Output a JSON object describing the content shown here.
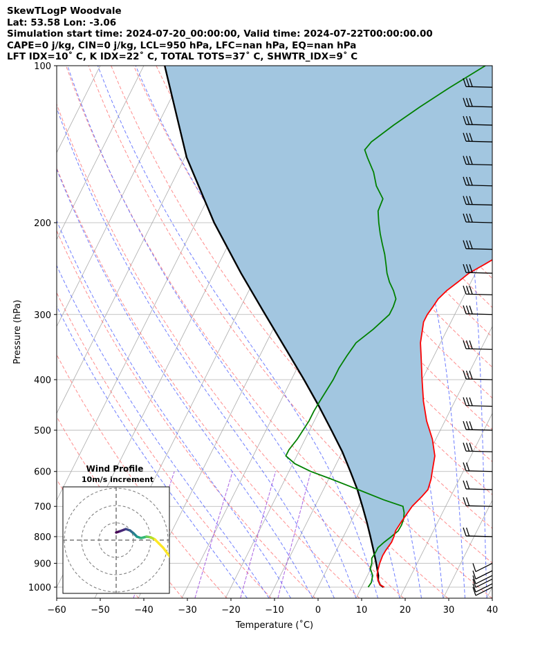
{
  "header": {
    "title": "SkewTLogP Woodvale",
    "latlon": "Lat: 53.58   Lon: -3.06",
    "simulation": "Simulation start time: 2024-07-20_00:00:00, Valid time: 2024-07-22T00:00:00.00",
    "indices1": "CAPE=0 j/kg, CIN=0 j/kg, LCL=950 hPa, LFC=nan hPa, EQ=nan hPa",
    "indices2": "LFT IDX=10˚ C, K IDX=22˚ C, TOTAL TOTS=37˚ C, SHWTR_IDX=9˚ C"
  },
  "chart_data": {
    "type": "line",
    "subtype": "skew-T log-P diagram",
    "xlabel": "Temperature (˚C)",
    "ylabel": "Pressure (hPa)",
    "xlim": [
      -60,
      40
    ],
    "ylim": [
      1050,
      100
    ],
    "x_ticks": [
      -60,
      -50,
      -40,
      -30,
      -20,
      -10,
      0,
      10,
      20,
      30,
      40
    ],
    "y_ticks": [
      100,
      200,
      300,
      400,
      500,
      600,
      700,
      800,
      900,
      1000
    ],
    "y_scale": "log",
    "skew_degrees_per_decade": 60,
    "grid": true,
    "colors": {
      "temperature": "#ff0000",
      "dewpoint": "#008000",
      "parcel": "#000000",
      "cape_fill": "#a2c6e0",
      "dry_adiabat": "#ff6666",
      "moist_adiabat": "#5566ff",
      "mixing_ratio": "#9944dd",
      "isotherm": "#aaaaaa",
      "wind_barb": "#000000"
    },
    "series": [
      {
        "name": "Temperature",
        "points": [
          [
            1000,
            15.2
          ],
          [
            990,
            14.0
          ],
          [
            970,
            13.0
          ],
          [
            950,
            12.2
          ],
          [
            930,
            11.8
          ],
          [
            900,
            11.4
          ],
          [
            870,
            11.2
          ],
          [
            850,
            11.3
          ],
          [
            820,
            11.7
          ],
          [
            800,
            11.6
          ],
          [
            780,
            11.3
          ],
          [
            750,
            11.6
          ],
          [
            700,
            12.3
          ],
          [
            670,
            13.4
          ],
          [
            650,
            14.0
          ],
          [
            620,
            13.5
          ],
          [
            600,
            12.9
          ],
          [
            560,
            11.7
          ],
          [
            520,
            9.2
          ],
          [
            480,
            5.8
          ],
          [
            440,
            2.8
          ],
          [
            400,
            0.0
          ],
          [
            370,
            -2.2
          ],
          [
            340,
            -4.6
          ],
          [
            310,
            -6.3
          ],
          [
            300,
            -6.3
          ],
          [
            290,
            -5.9
          ],
          [
            280,
            -5.6
          ],
          [
            270,
            -4.6
          ],
          [
            260,
            -3.0
          ],
          [
            250,
            -1.5
          ],
          [
            240,
            1.2
          ],
          [
            230,
            3.8
          ],
          [
            220,
            5.5
          ],
          [
            210,
            6.7
          ],
          [
            200,
            7.8
          ],
          [
            190,
            8.7
          ],
          [
            180,
            9.4
          ],
          [
            170,
            9.6
          ],
          [
            160,
            9.6
          ],
          [
            150,
            9.6
          ],
          [
            140,
            9.4
          ],
          [
            130,
            9.8
          ],
          [
            125,
            10.6
          ],
          [
            120,
            12.0
          ],
          [
            110,
            12.5
          ],
          [
            100,
            13.0
          ]
        ]
      },
      {
        "name": "Dewpoint",
        "points": [
          [
            1000,
            11.5
          ],
          [
            980,
            11.7
          ],
          [
            950,
            11.2
          ],
          [
            920,
            9.8
          ],
          [
            900,
            9.6
          ],
          [
            880,
            9.0
          ],
          [
            860,
            9.2
          ],
          [
            840,
            9.2
          ],
          [
            820,
            10.0
          ],
          [
            800,
            11.0
          ],
          [
            780,
            11.9
          ],
          [
            760,
            12.0
          ],
          [
            740,
            11.8
          ],
          [
            720,
            11.2
          ],
          [
            700,
            10.2
          ],
          [
            680,
            5.0
          ],
          [
            650,
            -2.0
          ],
          [
            620,
            -9.5
          ],
          [
            600,
            -15.0
          ],
          [
            580,
            -19.5
          ],
          [
            560,
            -22.5
          ],
          [
            545,
            -22.5
          ],
          [
            520,
            -21.8
          ],
          [
            480,
            -21.2
          ],
          [
            460,
            -21.2
          ],
          [
            440,
            -21.0
          ],
          [
            400,
            -20.4
          ],
          [
            380,
            -20.4
          ],
          [
            360,
            -20.0
          ],
          [
            340,
            -19.4
          ],
          [
            320,
            -17.0
          ],
          [
            300,
            -15.0
          ],
          [
            290,
            -15.0
          ],
          [
            280,
            -15.3
          ],
          [
            270,
            -16.8
          ],
          [
            260,
            -18.7
          ],
          [
            250,
            -20.3
          ],
          [
            240,
            -21.6
          ],
          [
            230,
            -23.0
          ],
          [
            220,
            -24.7
          ],
          [
            210,
            -26.4
          ],
          [
            200,
            -28.0
          ],
          [
            190,
            -29.5
          ],
          [
            180,
            -29.8
          ],
          [
            170,
            -32.8
          ],
          [
            160,
            -35.0
          ],
          [
            150,
            -38.1
          ],
          [
            145,
            -39.6
          ],
          [
            140,
            -39.0
          ],
          [
            130,
            -35.8
          ],
          [
            120,
            -31.9
          ],
          [
            110,
            -27.2
          ],
          [
            100,
            -21.6
          ]
        ]
      },
      {
        "name": "Parcel",
        "points": [
          [
            1000,
            15.0
          ],
          [
            990,
            14.0
          ],
          [
            970,
            13.0
          ],
          [
            950,
            12.5
          ],
          [
            900,
            10.6
          ],
          [
            850,
            8.5
          ],
          [
            800,
            6.2
          ],
          [
            750,
            3.7
          ],
          [
            700,
            0.9
          ],
          [
            650,
            -2.2
          ],
          [
            600,
            -5.9
          ],
          [
            550,
            -10.0
          ],
          [
            500,
            -15.0
          ],
          [
            450,
            -20.6
          ],
          [
            400,
            -27.1
          ],
          [
            350,
            -34.7
          ],
          [
            300,
            -43.5
          ],
          [
            250,
            -53.8
          ],
          [
            200,
            -65.8
          ],
          [
            150,
            -79.6
          ],
          [
            100,
            -95.2
          ]
        ]
      }
    ],
    "wind_barbs_pressures": [
      1000,
      985,
      965,
      950,
      930,
      900,
      800,
      700,
      650,
      600,
      550,
      500,
      450,
      400,
      350,
      300,
      275,
      250,
      225,
      200,
      185,
      170,
      155,
      140,
      130,
      120,
      110
    ],
    "inset": {
      "title": "Wind Profile",
      "subtitle": "10m/s increment"
    }
  }
}
